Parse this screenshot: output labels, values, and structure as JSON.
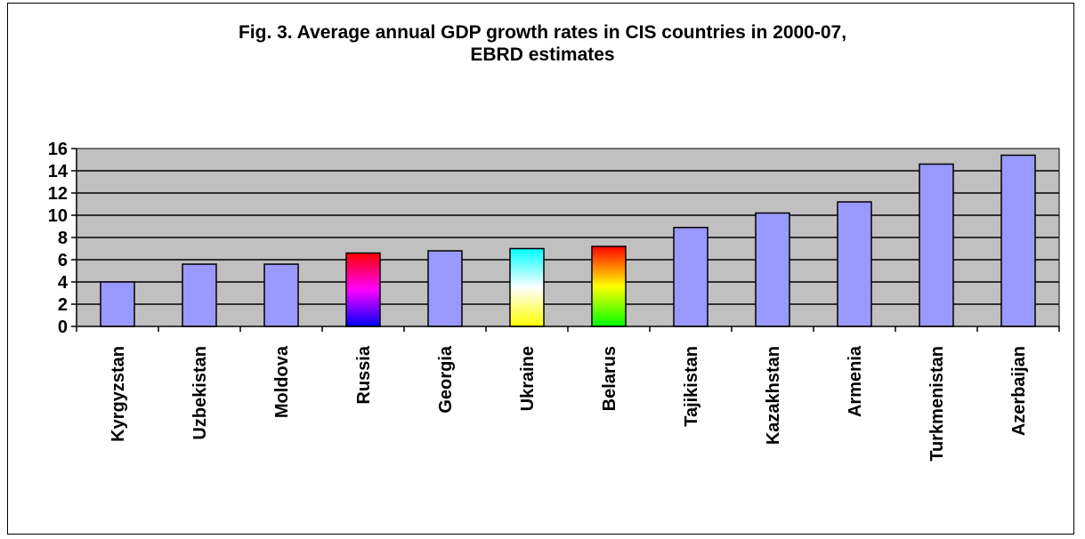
{
  "chart_data": {
    "type": "bar",
    "title_line1": "Fig. 3. Average annual  GDP growth rates in CIS countries in 2000-07,",
    "title_line2": "EBRD estimates",
    "categories": [
      "Kyrgyzstan",
      "Uzbekistan",
      "Moldova",
      "Russia",
      "Georgia",
      "Ukraine",
      "Belarus",
      "Tajikistan",
      "Kazakhstan",
      "Armenia",
      "Turkmenistan",
      "Azerbaijan"
    ],
    "values": [
      4.0,
      5.6,
      5.6,
      6.6,
      6.8,
      7.0,
      7.2,
      8.9,
      10.2,
      11.2,
      14.6,
      15.4
    ],
    "yticks": [
      "0",
      "2",
      "4",
      "6",
      "8",
      "10",
      "12",
      "14",
      "16"
    ],
    "ylim": [
      0,
      16
    ],
    "xlabel": "",
    "ylabel": "",
    "grid": true,
    "colors": {
      "bar": "#9999ff",
      "plot_background": "#c0c0c0",
      "russia_gradient": [
        "#ff0000",
        "#ff00ff",
        "#0000ff"
      ],
      "ukraine_gradient": [
        "#00ffff",
        "#ffffff",
        "#ffff00"
      ],
      "belarus_gradient": [
        "#ff0000",
        "#ffff00",
        "#00ff00"
      ]
    }
  }
}
